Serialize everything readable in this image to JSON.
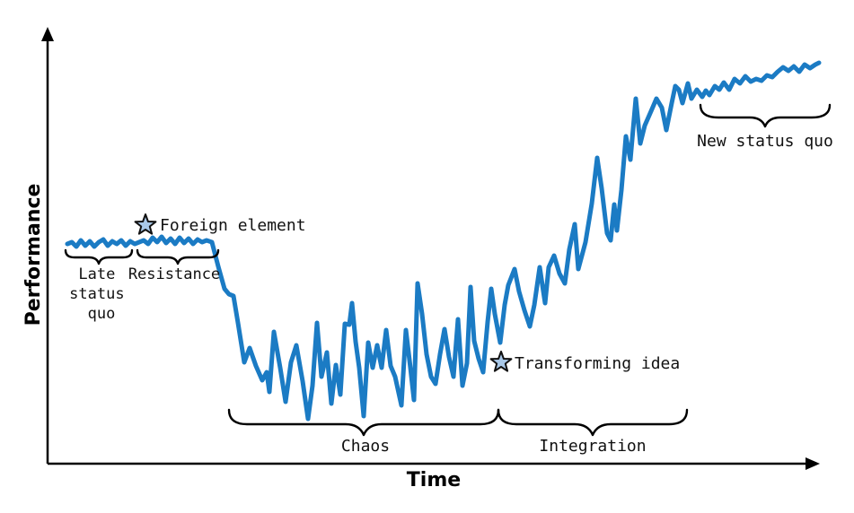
{
  "axes": {
    "x_title": "Time",
    "y_title": "Performance"
  },
  "phases": [
    {
      "id": "late-status-quo",
      "lines": [
        "Late",
        "status",
        "quo"
      ]
    },
    {
      "id": "resistance",
      "lines": [
        "Resistance"
      ]
    },
    {
      "id": "chaos",
      "lines": [
        "Chaos"
      ]
    },
    {
      "id": "integration",
      "lines": [
        "Integration"
      ]
    },
    {
      "id": "new-status-quo",
      "lines": [
        "New status quo"
      ]
    }
  ],
  "events": {
    "foreign_element": "Foreign element",
    "transforming_idea": "Transforming idea"
  },
  "colors": {
    "curve": "#1b7bc4",
    "star_fill": "#a9c8e8",
    "axis": "#000000"
  },
  "icons": {
    "event_marker": "star-icon",
    "phase_span": "curly-brace"
  }
}
